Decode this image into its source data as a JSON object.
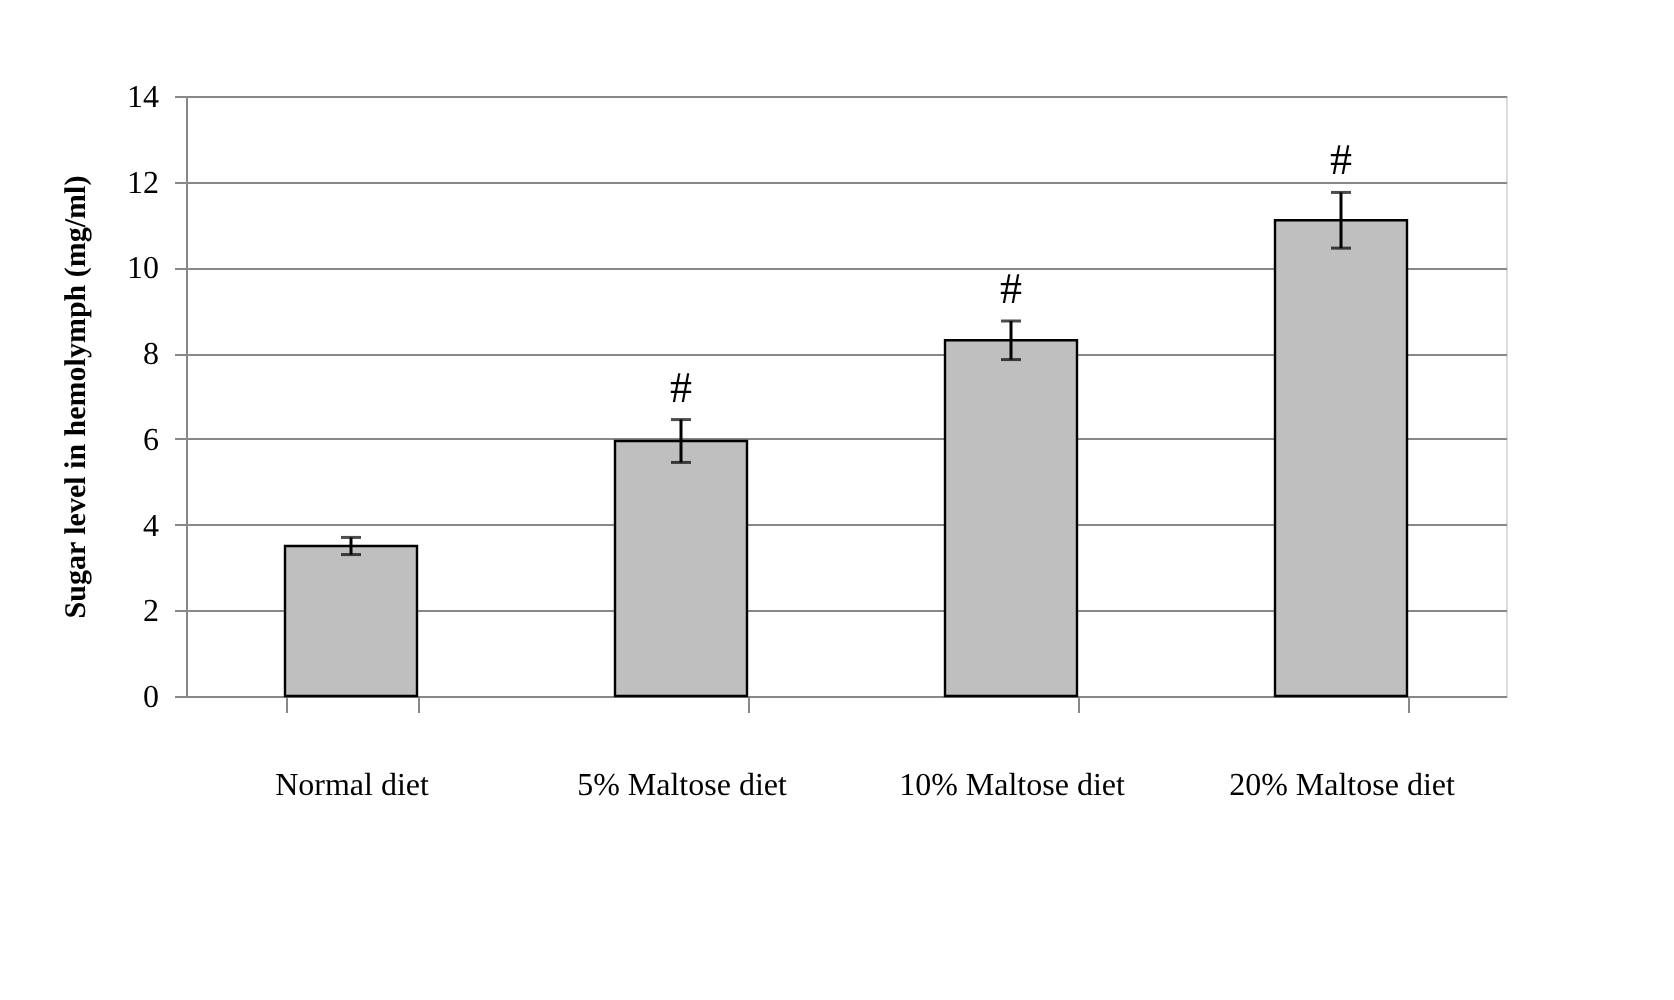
{
  "chart_data": {
    "type": "bar",
    "ylabel": "Sugar level  in hemolymph (mg/ml)",
    "categories": [
      "Normal diet",
      "5% Maltose diet",
      "10% Maltose diet",
      "20% Maltose diet"
    ],
    "values": [
      3.5,
      5.95,
      8.3,
      11.1
    ],
    "color": "#bfbfbf",
    "errors": [
      0.2,
      0.5,
      0.45,
      0.65
    ],
    "ylim": [
      0,
      14
    ],
    "yticks": [
      0,
      2,
      4,
      6,
      8,
      10,
      12,
      14
    ],
    "grid": "y",
    "annotations": [
      {
        "text": "#",
        "x": "5% Maltose diet",
        "y": 6.45
      },
      {
        "text": "#",
        "x": "10% Maltose diet",
        "y": 8.75
      },
      {
        "text": "#",
        "x": "20% Maltose diet",
        "y": 11.75
      }
    ]
  }
}
